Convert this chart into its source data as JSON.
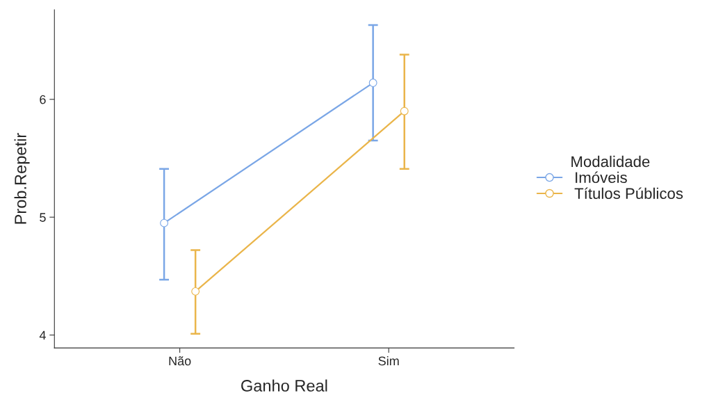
{
  "chart_data": {
    "type": "line",
    "xlabel": "Ganho Real",
    "ylabel": "Prob.Repetir",
    "legend_title": "Modalidade",
    "categories": [
      "Não",
      "Sim"
    ],
    "series": [
      {
        "name": "Imóveis",
        "color": "#7aa6e6",
        "values": [
          4.95,
          6.14
        ],
        "errors": [
          [
            4.47,
            5.41
          ],
          [
            5.65,
            6.63
          ]
        ]
      },
      {
        "name": "Títulos Públicos",
        "color": "#eab54a",
        "values": [
          4.37,
          5.9
        ],
        "errors": [
          [
            4.01,
            4.72
          ],
          [
            5.41,
            6.38
          ]
        ]
      }
    ],
    "ylim": [
      3.89,
      6.76
    ],
    "yticks": [
      4,
      5,
      6
    ],
    "grid": false,
    "legend": "right",
    "marker": "circle",
    "line_style": "solid"
  }
}
